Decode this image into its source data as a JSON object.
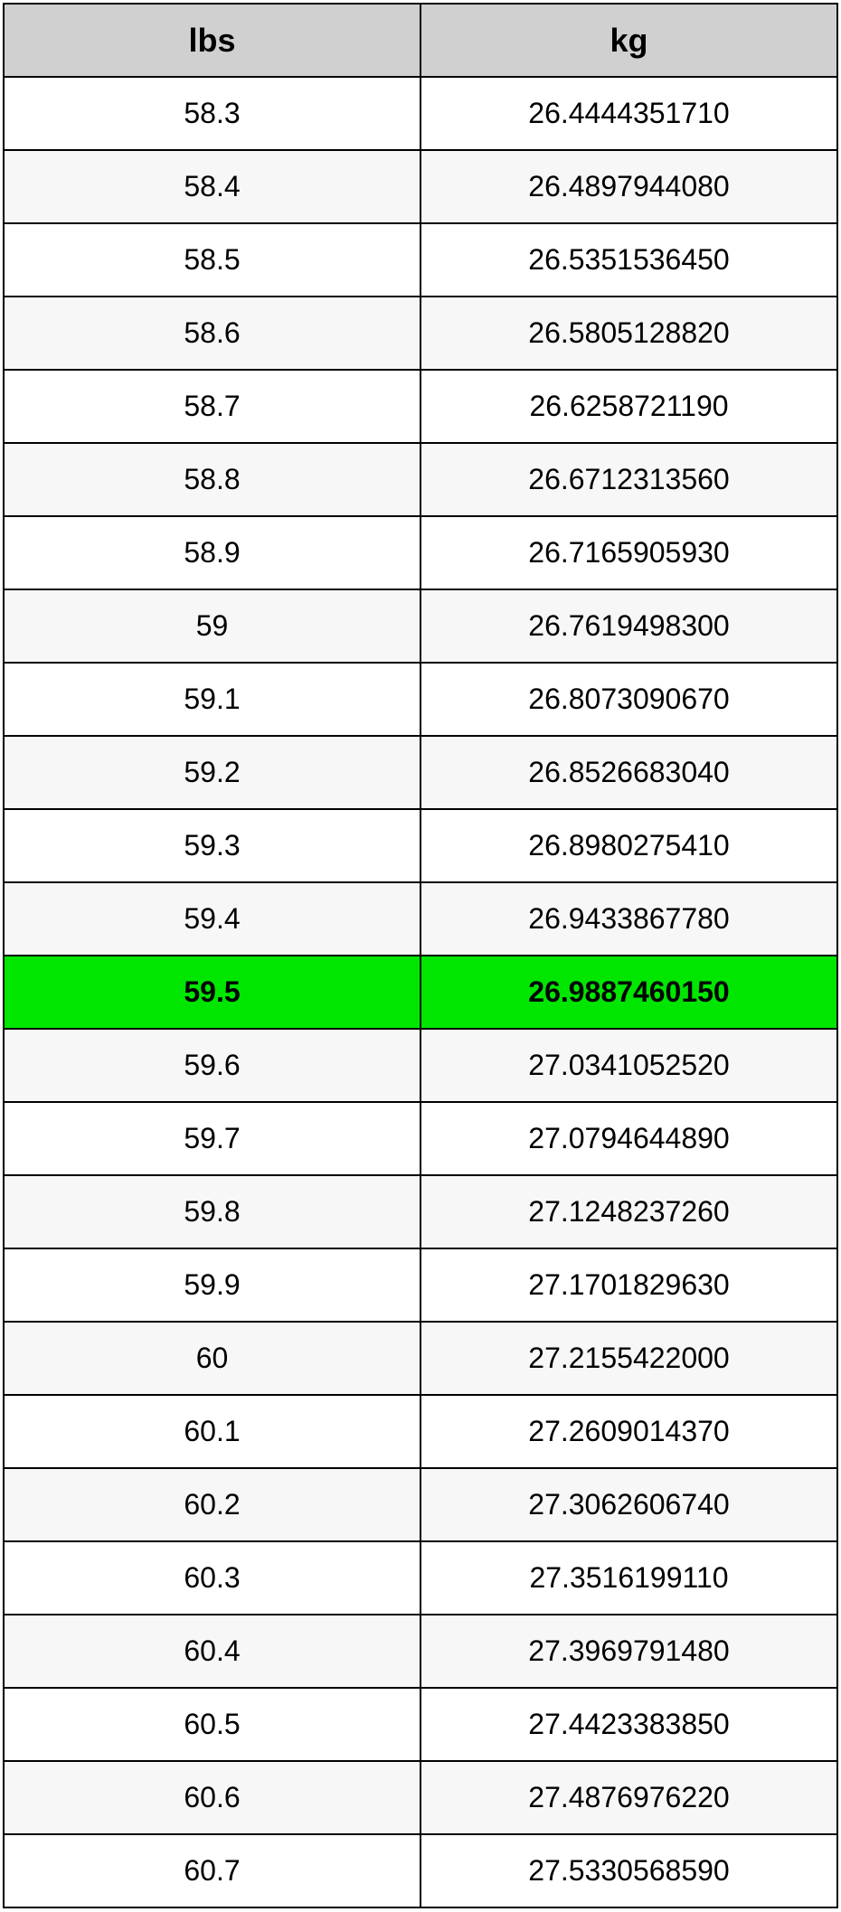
{
  "conversion_table": {
    "type": "table",
    "columns": [
      "lbs",
      "kg"
    ],
    "header_background": "#d0d0d0",
    "header_fontsize": 36,
    "cell_fontsize": 32,
    "border_color": "#000000",
    "alt_row_background": "#f7f7f7",
    "highlight_background": "#00e600",
    "highlighted_row_index": 12,
    "rows": [
      {
        "lbs": "58.3",
        "kg": "26.4444351710"
      },
      {
        "lbs": "58.4",
        "kg": "26.4897944080"
      },
      {
        "lbs": "58.5",
        "kg": "26.5351536450"
      },
      {
        "lbs": "58.6",
        "kg": "26.5805128820"
      },
      {
        "lbs": "58.7",
        "kg": "26.6258721190"
      },
      {
        "lbs": "58.8",
        "kg": "26.6712313560"
      },
      {
        "lbs": "58.9",
        "kg": "26.7165905930"
      },
      {
        "lbs": "59",
        "kg": "26.7619498300"
      },
      {
        "lbs": "59.1",
        "kg": "26.8073090670"
      },
      {
        "lbs": "59.2",
        "kg": "26.8526683040"
      },
      {
        "lbs": "59.3",
        "kg": "26.8980275410"
      },
      {
        "lbs": "59.4",
        "kg": "26.9433867780"
      },
      {
        "lbs": "59.5",
        "kg": "26.9887460150"
      },
      {
        "lbs": "59.6",
        "kg": "27.0341052520"
      },
      {
        "lbs": "59.7",
        "kg": "27.0794644890"
      },
      {
        "lbs": "59.8",
        "kg": "27.1248237260"
      },
      {
        "lbs": "59.9",
        "kg": "27.1701829630"
      },
      {
        "lbs": "60",
        "kg": "27.2155422000"
      },
      {
        "lbs": "60.1",
        "kg": "27.2609014370"
      },
      {
        "lbs": "60.2",
        "kg": "27.3062606740"
      },
      {
        "lbs": "60.3",
        "kg": "27.3516199110"
      },
      {
        "lbs": "60.4",
        "kg": "27.3969791480"
      },
      {
        "lbs": "60.5",
        "kg": "27.4423383850"
      },
      {
        "lbs": "60.6",
        "kg": "27.4876976220"
      },
      {
        "lbs": "60.7",
        "kg": "27.5330568590"
      }
    ]
  }
}
